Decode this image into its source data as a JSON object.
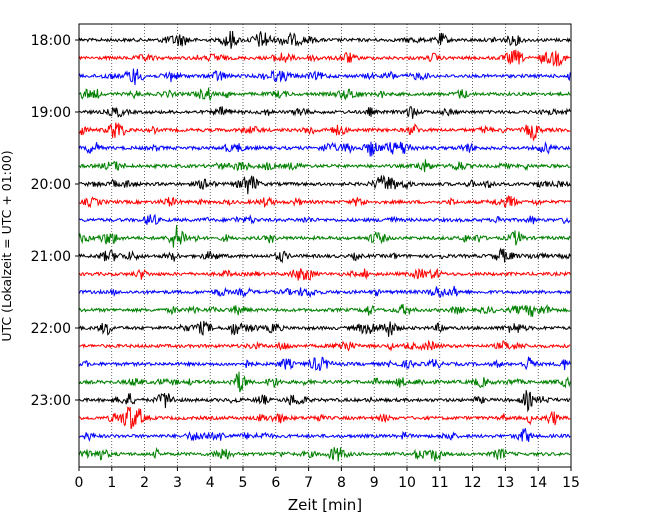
{
  "chart_data": {
    "type": "line",
    "title": "",
    "xlabel": "Zeit  [min]",
    "ylabel": "UTC (Lokalzeit = UTC + 01:00)",
    "xlim": [
      0,
      15
    ],
    "x_ticks": [
      "0",
      "1",
      "2",
      "3",
      "4",
      "5",
      "6",
      "7",
      "8",
      "9",
      "10",
      "11",
      "12",
      "13",
      "14",
      "15"
    ],
    "y_ticks": [
      "18:00",
      "19:00",
      "20:00",
      "21:00",
      "22:00",
      "23:00"
    ],
    "grid": "vertical dotted lines at each minute",
    "trace_interval_minutes": 15,
    "traces": [
      {
        "start": "18:00",
        "color": "#000000"
      },
      {
        "start": "18:15",
        "color": "#ff0000"
      },
      {
        "start": "18:30",
        "color": "#0000ff"
      },
      {
        "start": "18:45",
        "color": "#008000"
      },
      {
        "start": "19:00",
        "color": "#000000"
      },
      {
        "start": "19:15",
        "color": "#ff0000"
      },
      {
        "start": "19:30",
        "color": "#0000ff"
      },
      {
        "start": "19:45",
        "color": "#008000"
      },
      {
        "start": "20:00",
        "color": "#000000"
      },
      {
        "start": "20:15",
        "color": "#ff0000"
      },
      {
        "start": "20:30",
        "color": "#0000ff"
      },
      {
        "start": "20:45",
        "color": "#008000"
      },
      {
        "start": "21:00",
        "color": "#000000"
      },
      {
        "start": "21:15",
        "color": "#ff0000"
      },
      {
        "start": "21:30",
        "color": "#0000ff"
      },
      {
        "start": "21:45",
        "color": "#008000"
      },
      {
        "start": "22:00",
        "color": "#000000"
      },
      {
        "start": "22:15",
        "color": "#ff0000"
      },
      {
        "start": "22:30",
        "color": "#0000ff"
      },
      {
        "start": "22:45",
        "color": "#008000"
      },
      {
        "start": "23:00",
        "color": "#000000"
      },
      {
        "start": "23:15",
        "color": "#ff0000"
      },
      {
        "start": "23:30",
        "color": "#0000ff"
      },
      {
        "start": "23:45",
        "color": "#008000"
      }
    ]
  }
}
